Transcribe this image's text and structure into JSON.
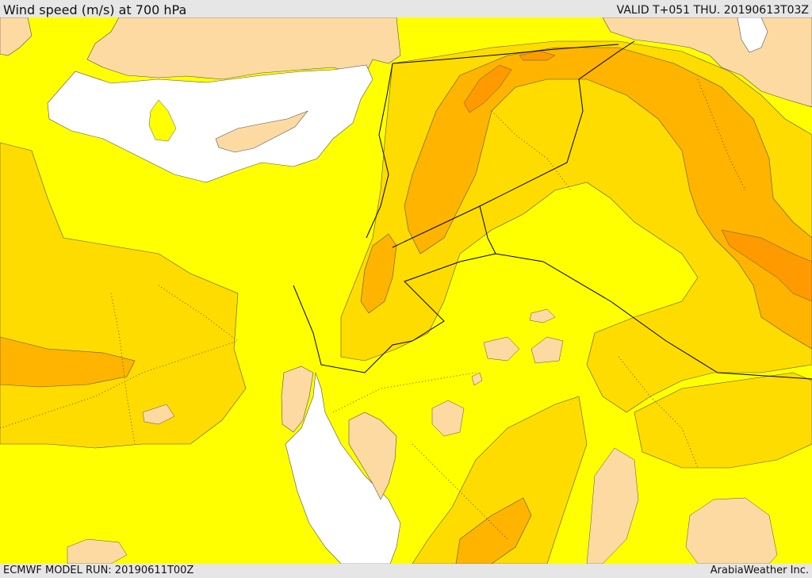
{
  "header": {
    "title": "Wind speed (m/s) at 700 hPa",
    "valid": "VALID T+051 THU. 20190613T03Z"
  },
  "footer": {
    "model_run": "ECMWF MODEL RUN: 20190611T00Z",
    "credit": "ArabiaWeather Inc."
  },
  "colors": {
    "land": "#fcdaa2",
    "sea": "#ffffff",
    "band_low": "#ffff00",
    "band_mid": "#ffdc00",
    "band_high": "#ffb400",
    "band_max": "#ff9a00",
    "border": "#000000"
  }
}
